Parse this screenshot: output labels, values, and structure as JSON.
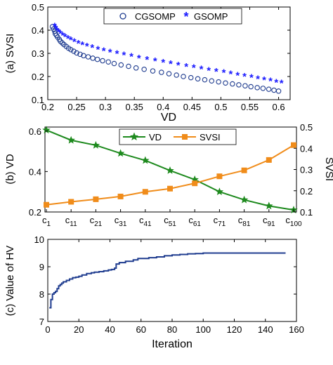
{
  "chart_data": [
    {
      "type": "scatter",
      "panel": "a",
      "xlabel": "VD",
      "ylabel": "(a) SVSI",
      "xlim": [
        0.2,
        0.62
      ],
      "ylim": [
        0.1,
        0.5
      ],
      "xticks": [
        0.2,
        0.25,
        0.3,
        0.35,
        0.4,
        0.45,
        0.5,
        0.55,
        0.6
      ],
      "xtick_labels": [
        "0.2",
        "0.25",
        "0.3",
        "0.35",
        "0.4",
        "0.45",
        "0.5",
        "0.55",
        "0.6"
      ],
      "yticks": [
        0.1,
        0.2,
        0.3,
        0.4,
        0.5
      ],
      "ytick_labels": [
        "0.1",
        "0.2",
        "0.3",
        "0.4",
        "0.5"
      ],
      "grid": false,
      "legend_position": "top-right",
      "series": [
        {
          "name": "CGSOMP",
          "marker": "circle",
          "color": "#1f3c8f",
          "points": [
            [
              0.208,
              0.415
            ],
            [
              0.21,
              0.405
            ],
            [
              0.212,
              0.395
            ],
            [
              0.213,
              0.385
            ],
            [
              0.215,
              0.378
            ],
            [
              0.217,
              0.37
            ],
            [
              0.22,
              0.36
            ],
            [
              0.222,
              0.352
            ],
            [
              0.225,
              0.345
            ],
            [
              0.228,
              0.338
            ],
            [
              0.232,
              0.33
            ],
            [
              0.236,
              0.322
            ],
            [
              0.24,
              0.316
            ],
            [
              0.245,
              0.309
            ],
            [
              0.25,
              0.302
            ],
            [
              0.256,
              0.296
            ],
            [
              0.262,
              0.29
            ],
            [
              0.27,
              0.285
            ],
            [
              0.278,
              0.279
            ],
            [
              0.286,
              0.274
            ],
            [
              0.295,
              0.268
            ],
            [
              0.305,
              0.263
            ],
            [
              0.315,
              0.256
            ],
            [
              0.327,
              0.25
            ],
            [
              0.34,
              0.244
            ],
            [
              0.353,
              0.237
            ],
            [
              0.367,
              0.231
            ],
            [
              0.382,
              0.224
            ],
            [
              0.397,
              0.218
            ],
            [
              0.41,
              0.212
            ],
            [
              0.423,
              0.206
            ],
            [
              0.435,
              0.2
            ],
            [
              0.448,
              0.195
            ],
            [
              0.46,
              0.19
            ],
            [
              0.472,
              0.186
            ],
            [
              0.484,
              0.181
            ],
            [
              0.496,
              0.177
            ],
            [
              0.508,
              0.172
            ],
            [
              0.52,
              0.168
            ],
            [
              0.531,
              0.164
            ],
            [
              0.542,
              0.16
            ],
            [
              0.552,
              0.156
            ],
            [
              0.563,
              0.152
            ],
            [
              0.573,
              0.149
            ],
            [
              0.583,
              0.145
            ],
            [
              0.592,
              0.141
            ],
            [
              0.6,
              0.137
            ]
          ]
        },
        {
          "name": "GSOMP",
          "marker": "asterisk",
          "color": "#1a1aff",
          "points": [
            [
              0.212,
              0.42
            ],
            [
              0.214,
              0.41
            ],
            [
              0.216,
              0.402
            ],
            [
              0.219,
              0.395
            ],
            [
              0.222,
              0.388
            ],
            [
              0.226,
              0.381
            ],
            [
              0.23,
              0.374
            ],
            [
              0.235,
              0.367
            ],
            [
              0.24,
              0.36
            ],
            [
              0.246,
              0.353
            ],
            [
              0.253,
              0.346
            ],
            [
              0.26,
              0.34
            ],
            [
              0.268,
              0.333
            ],
            [
              0.277,
              0.327
            ],
            [
              0.287,
              0.32
            ],
            [
              0.297,
              0.314
            ],
            [
              0.308,
              0.308
            ],
            [
              0.32,
              0.301
            ],
            [
              0.332,
              0.295
            ],
            [
              0.345,
              0.289
            ],
            [
              0.358,
              0.282
            ],
            [
              0.372,
              0.276
            ],
            [
              0.386,
              0.27
            ],
            [
              0.4,
              0.264
            ],
            [
              0.413,
              0.258
            ],
            [
              0.426,
              0.252
            ],
            [
              0.44,
              0.246
            ],
            [
              0.453,
              0.241
            ],
            [
              0.466,
              0.235
            ],
            [
              0.479,
              0.229
            ],
            [
              0.492,
              0.224
            ],
            [
              0.505,
              0.219
            ],
            [
              0.517,
              0.213
            ],
            [
              0.529,
              0.208
            ],
            [
              0.541,
              0.203
            ],
            [
              0.553,
              0.198
            ],
            [
              0.564,
              0.193
            ],
            [
              0.575,
              0.188
            ],
            [
              0.586,
              0.183
            ],
            [
              0.596,
              0.178
            ],
            [
              0.605,
              0.174
            ]
          ]
        }
      ]
    },
    {
      "type": "line",
      "panel": "b",
      "ylabel_left": "(b) VD",
      "ylabel_right": "SVSI",
      "categories": [
        "c1",
        "c11",
        "c21",
        "c31",
        "c41",
        "c51",
        "c61",
        "c71",
        "c81",
        "c91",
        "c100"
      ],
      "category_labels": [
        {
          "base": "c",
          "sub": "1"
        },
        {
          "base": "c",
          "sub": "11"
        },
        {
          "base": "c",
          "sub": "21"
        },
        {
          "base": "c",
          "sub": "31"
        },
        {
          "base": "c",
          "sub": "41"
        },
        {
          "base": "c",
          "sub": "51"
        },
        {
          "base": "c",
          "sub": "61"
        },
        {
          "base": "c",
          "sub": "71"
        },
        {
          "base": "c",
          "sub": "81"
        },
        {
          "base": "c",
          "sub": "91"
        },
        {
          "base": "c",
          "sub": "100"
        }
      ],
      "ylim_left": [
        0.2,
        0.62
      ],
      "yticks_left": [
        0.2,
        0.4,
        0.6
      ],
      "ytick_labels_left": [
        "0.2",
        "0.4",
        "0.6"
      ],
      "ylim_right": [
        0.1,
        0.5
      ],
      "yticks_right": [
        0.1,
        0.2,
        0.3,
        0.4,
        0.5
      ],
      "ytick_labels_right": [
        "0.1",
        "0.2",
        "0.3",
        "0.4",
        "0.5"
      ],
      "grid": false,
      "legend_position": "top-center",
      "series": [
        {
          "name": "VD",
          "axis": "left",
          "marker": "star",
          "color": "#1e8a1e",
          "values": [
            0.605,
            0.555,
            0.53,
            0.49,
            0.455,
            0.405,
            0.36,
            0.3,
            0.26,
            0.23,
            0.21
          ]
        },
        {
          "name": "SVSI",
          "axis": "right",
          "marker": "square",
          "color": "#f08c1a",
          "values": [
            0.134,
            0.148,
            0.16,
            0.173,
            0.195,
            0.21,
            0.235,
            0.268,
            0.296,
            0.345,
            0.415
          ]
        }
      ]
    },
    {
      "type": "line",
      "panel": "c",
      "xlabel": "Iteration",
      "ylabel": "(c) Value of HV",
      "xlim": [
        0,
        160
      ],
      "ylim": [
        7,
        10
      ],
      "xticks": [
        0,
        20,
        40,
        60,
        80,
        100,
        120,
        140,
        160
      ],
      "xtick_labels": [
        "0",
        "20",
        "40",
        "60",
        "80",
        "100",
        "120",
        "140",
        "160"
      ],
      "yticks": [
        7,
        8,
        9,
        10
      ],
      "ytick_labels": [
        "7",
        "8",
        "9",
        "10"
      ],
      "grid": false,
      "series": [
        {
          "color": "#1f3c8f",
          "x": [
            1,
            2,
            3,
            4,
            5,
            6,
            7,
            8,
            9,
            10,
            12,
            14,
            16,
            18,
            20,
            22,
            25,
            28,
            30,
            33,
            36,
            39,
            41,
            43,
            44,
            46,
            50,
            55,
            58,
            60,
            65,
            70,
            75,
            80,
            85,
            90,
            95,
            100,
            110,
            120,
            130,
            140,
            150,
            153
          ],
          "y": [
            7.5,
            7.8,
            8.0,
            8.05,
            8.1,
            8.2,
            8.3,
            8.35,
            8.4,
            8.45,
            8.5,
            8.55,
            8.6,
            8.62,
            8.65,
            8.7,
            8.75,
            8.78,
            8.8,
            8.82,
            8.85,
            8.88,
            8.9,
            8.95,
            9.1,
            9.15,
            9.2,
            9.25,
            9.3,
            9.3,
            9.33,
            9.36,
            9.4,
            9.43,
            9.45,
            9.47,
            9.48,
            9.5,
            9.5,
            9.5,
            9.5,
            9.5,
            9.5,
            9.5
          ]
        }
      ]
    }
  ]
}
